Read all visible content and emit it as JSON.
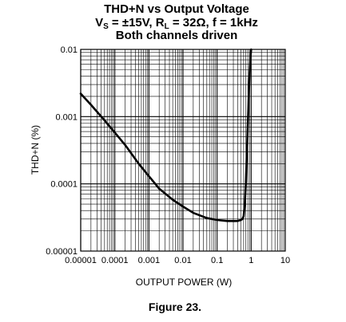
{
  "chart_data": {
    "type": "line",
    "title": "THD+N vs Output Voltage",
    "subtitle_parts": {
      "vs_main": "V",
      "vs_sub": "S",
      "mid": " = ±15V, R",
      "rl_sub": "L",
      "tail": " = 32Ω, f = 1kHz"
    },
    "subtitle2": "Both channels driven",
    "xlabel": "OUTPUT POWER (W)",
    "ylabel": "THD+N (%)",
    "xscale": "log",
    "yscale": "log",
    "xlim": [
      1e-05,
      10
    ],
    "ylim": [
      1e-05,
      0.01
    ],
    "grid": true,
    "x_tick_labels": [
      "0.00001",
      "0.0001",
      "0.001",
      "0.01",
      "0.1",
      "1",
      "10"
    ],
    "y_tick_labels": [
      "0.00001",
      "0.0001",
      "0.001",
      "0.01"
    ],
    "series": [
      {
        "x": [
          1e-05,
          2e-05,
          5e-05,
          0.0001,
          0.0002,
          0.0005,
          0.001,
          0.002,
          0.005,
          0.01,
          0.02,
          0.05,
          0.1,
          0.2,
          0.3,
          0.4,
          0.5,
          0.55,
          0.6,
          0.65,
          0.7,
          0.75,
          0.8,
          0.85,
          0.9,
          0.95,
          1.0
        ],
        "values": [
          0.0022,
          0.0015,
          0.00088,
          0.00058,
          0.00038,
          0.0002,
          0.00013,
          8.5e-05,
          5.8e-05,
          4.6e-05,
          3.7e-05,
          3.1e-05,
          2.9e-05,
          2.8e-05,
          2.8e-05,
          2.8e-05,
          2.9e-05,
          3e-05,
          3.3e-05,
          5e-05,
          0.0001,
          0.0003,
          0.0008,
          0.002,
          0.0045,
          0.0075,
          0.01
        ]
      }
    ]
  },
  "caption": "Figure 23."
}
